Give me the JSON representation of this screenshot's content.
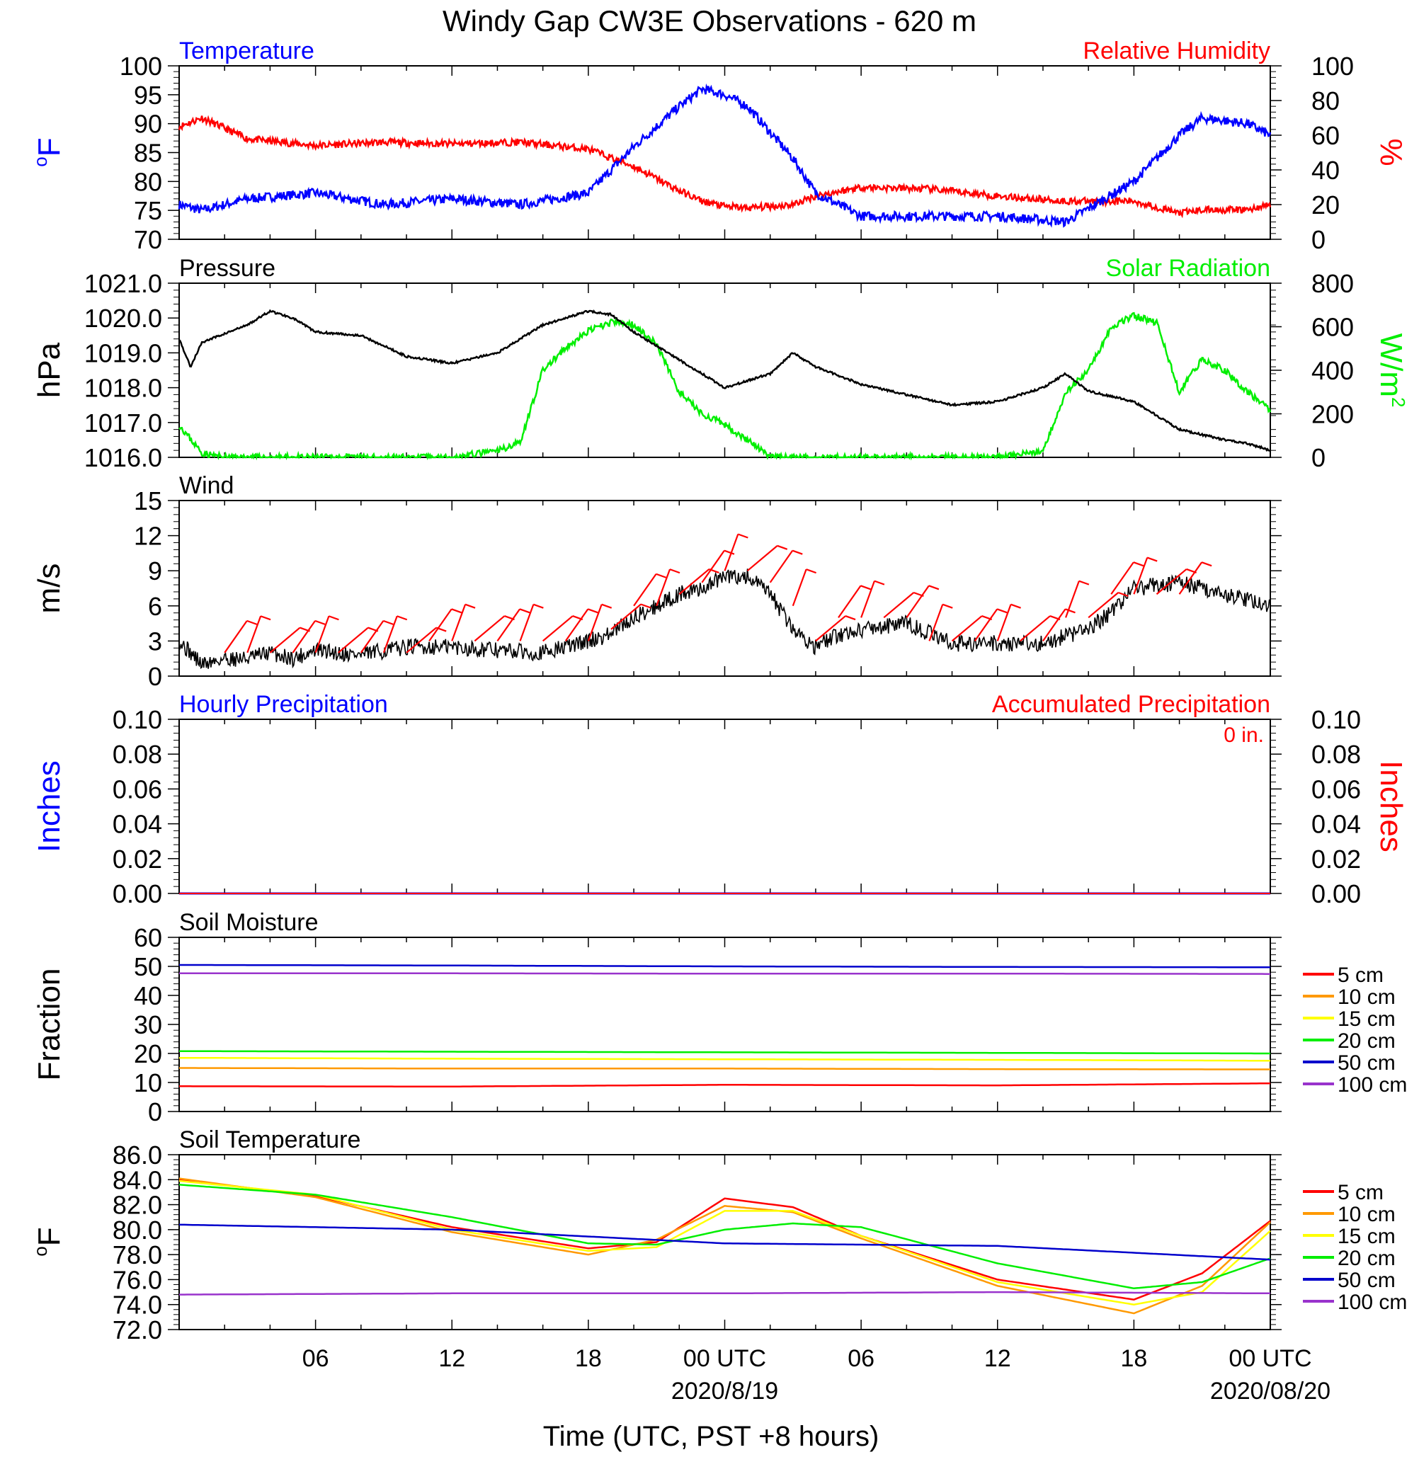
{
  "title": "Windy Gap CW3E Observations - 620 m",
  "xlabel": "Time (UTC, PST +8 hours)",
  "x_ticks": [
    "06",
    "12",
    "18",
    "00 UTC",
    "06",
    "12",
    "18",
    "00 UTC"
  ],
  "x_dates": [
    "2020/8/19",
    "2020/08/20"
  ],
  "colors": {
    "temperature": "#0000ff",
    "humidity": "#ff0000",
    "pressure": "#000000",
    "solar": "#00ee00",
    "wind": "#000000",
    "barb": "#ff0000",
    "s5": "#ff0000",
    "s10": "#ff9900",
    "s15": "#ffff00",
    "s20": "#00ee00",
    "s50": "#0000cc",
    "s100": "#9933cc"
  },
  "chart_data": [
    {
      "type": "line",
      "title_left": "Temperature",
      "title_right": "Relative Humidity",
      "ylabel_left": "oF",
      "ylabel_right": "%",
      "y_left_ticks": [
        "100",
        "95",
        "90",
        "85",
        "80",
        "75",
        "70"
      ],
      "y_right_ticks": [
        "100",
        "80",
        "60",
        "40",
        "20",
        "0"
      ],
      "ylim_left": [
        70,
        100
      ],
      "ylim_right": [
        0,
        100
      ],
      "x_hours": [
        0,
        1,
        3,
        6,
        9,
        12,
        15,
        18,
        20,
        22,
        23,
        24,
        25,
        27,
        28,
        30,
        33,
        36,
        39,
        42,
        44,
        45,
        47,
        48
      ],
      "series": [
        {
          "name": "Temperature",
          "axis": "left",
          "values": [
            76,
            75,
            77,
            78,
            76,
            77,
            76,
            78,
            86,
            93,
            96,
            95,
            93,
            84,
            78,
            74,
            74,
            74,
            73,
            80,
            88,
            91,
            90,
            88
          ]
        },
        {
          "name": "Relative Humidity",
          "axis": "right",
          "values": [
            65,
            70,
            58,
            54,
            56,
            55,
            56,
            52,
            42,
            28,
            22,
            19,
            18,
            20,
            25,
            30,
            29,
            25,
            22,
            22,
            15,
            17,
            17,
            20
          ]
        }
      ]
    },
    {
      "type": "line",
      "title_left": "Pressure",
      "title_right": "Solar Radiation",
      "ylabel_left": "hPa",
      "ylabel_right": "W/m",
      "ylabel_right_sup": "2",
      "y_left_ticks": [
        "1021.0",
        "1020.0",
        "1019.0",
        "1018.0",
        "1017.0",
        "1016.0"
      ],
      "y_right_ticks": [
        "800",
        "600",
        "400",
        "200",
        "0"
      ],
      "ylim_left": [
        1016,
        1021
      ],
      "ylim_right": [
        0,
        800
      ],
      "series": [
        {
          "name": "Pressure",
          "axis": "left",
          "x": [
            0,
            0.5,
            1,
            3,
            4,
            5,
            6,
            8,
            9,
            10,
            12,
            14,
            16,
            18,
            19,
            20,
            22,
            24,
            26,
            27,
            28,
            30,
            32,
            34,
            36,
            38,
            39,
            40,
            42,
            44,
            46,
            47,
            48
          ],
          "values": [
            1019.4,
            1018.6,
            1019.3,
            1019.8,
            1020.2,
            1020.0,
            1019.6,
            1019.5,
            1019.2,
            1018.9,
            1018.7,
            1019.0,
            1019.8,
            1020.2,
            1020.1,
            1019.6,
            1018.8,
            1018.0,
            1018.4,
            1019.0,
            1018.6,
            1018.1,
            1017.8,
            1017.5,
            1017.6,
            1018.0,
            1018.4,
            1017.9,
            1017.6,
            1016.8,
            1016.5,
            1016.4,
            1016.2
          ]
        },
        {
          "name": "Solar Radiation",
          "axis": "right",
          "x": [
            0,
            0.3,
            1,
            2,
            12,
            14,
            15,
            16,
            17,
            18,
            19,
            20,
            21,
            22,
            23,
            24,
            25,
            26,
            27,
            28,
            36,
            38,
            39,
            40,
            41,
            42,
            43,
            44,
            45,
            46,
            47,
            48
          ],
          "values": [
            150,
            110,
            20,
            0,
            0,
            30,
            70,
            400,
            500,
            580,
            620,
            610,
            520,
            300,
            200,
            150,
            80,
            0,
            0,
            0,
            0,
            30,
            300,
            400,
            600,
            650,
            620,
            300,
            450,
            400,
            300,
            220
          ]
        }
      ]
    },
    {
      "type": "line",
      "title_left": "Wind",
      "ylabel_left": "m/s",
      "y_left_ticks": [
        "15",
        "12",
        "9",
        "6",
        "3",
        "0"
      ],
      "ylim_left": [
        0,
        15
      ],
      "series": [
        {
          "name": "Wind speed",
          "x": [
            0,
            0.5,
            1,
            2,
            3,
            4,
            5,
            6,
            8,
            10,
            12,
            14,
            16,
            18,
            19,
            20,
            21,
            22,
            23,
            24,
            25,
            26,
            27,
            28,
            29,
            30,
            32,
            34,
            36,
            38,
            40,
            41,
            42,
            44,
            46,
            47,
            48
          ],
          "values": [
            3,
            2,
            1,
            1.5,
            1.5,
            2,
            1.5,
            2.2,
            1.8,
            2.5,
            2.5,
            2.2,
            2.0,
            3.0,
            3.6,
            5,
            6,
            7,
            7.5,
            8.5,
            8.5,
            7,
            4,
            2.5,
            3.5,
            4,
            4.5,
            2.8,
            2.8,
            2.8,
            4,
            5.5,
            7.5,
            8,
            7,
            6.5,
            6.0
          ]
        }
      ],
      "barbs": {
        "x": [
          2,
          3,
          4,
          5,
          6,
          7,
          8,
          9,
          10,
          11,
          12,
          13,
          14,
          15,
          16,
          17,
          18,
          19,
          20,
          21,
          22,
          23,
          24,
          25,
          26,
          27,
          28,
          29,
          30,
          31,
          32,
          33,
          34,
          35,
          36,
          37,
          38,
          39,
          40,
          41,
          42,
          43,
          44
        ],
        "speeds": [
          2,
          2,
          2,
          2,
          2,
          2,
          2,
          2,
          2,
          3,
          3,
          3,
          3,
          3,
          3,
          3,
          3,
          4,
          6,
          6,
          7,
          8,
          9,
          9,
          8,
          6,
          3,
          5,
          5,
          5,
          5,
          3,
          3,
          3,
          3,
          3,
          3,
          5,
          5,
          7,
          7,
          7,
          7
        ]
      }
    },
    {
      "type": "line",
      "title_left": "Hourly Precipitation",
      "title_right": "Accumulated Precipitation",
      "annotation": "0 in.",
      "ylabel_left": "Inches",
      "ylabel_right": "Inches",
      "y_left_ticks": [
        "0.10",
        "0.08",
        "0.06",
        "0.04",
        "0.02",
        "0.00"
      ],
      "y_right_ticks": [
        "0.10",
        "0.08",
        "0.06",
        "0.04",
        "0.02",
        "0.00"
      ],
      "ylim_left": [
        0,
        0.1
      ],
      "series": [
        {
          "name": "Hourly Precipitation",
          "x": [
            0,
            48
          ],
          "values": [
            0,
            0
          ]
        },
        {
          "name": "Accumulated Precipitation",
          "x": [
            0,
            48
          ],
          "values": [
            0,
            0
          ]
        }
      ]
    },
    {
      "type": "line",
      "title_left": "Soil Moisture",
      "ylabel_left": "Fraction",
      "y_left_ticks": [
        "60",
        "50",
        "40",
        "30",
        "20",
        "10",
        "0"
      ],
      "ylim_left": [
        0,
        60
      ],
      "legend": [
        "5 cm",
        "10 cm",
        "15 cm",
        "20 cm",
        "50 cm",
        "100 cm"
      ],
      "series": [
        {
          "name": "5 cm",
          "x": [
            0,
            12,
            24,
            36,
            48
          ],
          "values": [
            8.7,
            8.6,
            9.2,
            9.0,
            9.7
          ]
        },
        {
          "name": "10 cm",
          "x": [
            0,
            12,
            24,
            36,
            48
          ],
          "values": [
            15.0,
            14.8,
            14.8,
            14.6,
            14.5
          ]
        },
        {
          "name": "15 cm",
          "x": [
            0,
            12,
            24,
            36,
            48
          ],
          "values": [
            18.5,
            18.2,
            18.0,
            17.8,
            17.5
          ]
        },
        {
          "name": "20 cm",
          "x": [
            0,
            12,
            24,
            36,
            48
          ],
          "values": [
            20.8,
            20.6,
            20.4,
            20.2,
            20.0
          ]
        },
        {
          "name": "50 cm",
          "x": [
            0,
            12,
            24,
            36,
            48
          ],
          "values": [
            50.5,
            50.3,
            50.0,
            49.8,
            49.7
          ]
        },
        {
          "name": "100 cm",
          "x": [
            0,
            12,
            24,
            36,
            48
          ],
          "values": [
            47.6,
            47.6,
            47.5,
            47.5,
            47.4
          ]
        }
      ]
    },
    {
      "type": "line",
      "title_left": "Soil Temperature",
      "ylabel_left": "oF",
      "y_left_ticks": [
        "86.0",
        "84.0",
        "82.0",
        "80.0",
        "78.0",
        "76.0",
        "74.0",
        "72.0"
      ],
      "ylim_left": [
        72,
        86
      ],
      "legend": [
        "5 cm",
        "10 cm",
        "15 cm",
        "20 cm",
        "50 cm",
        "100 cm"
      ],
      "series": [
        {
          "name": "5 cm",
          "x": [
            0,
            6,
            12,
            18,
            21,
            24,
            27,
            30,
            36,
            42,
            45,
            48
          ],
          "values": [
            84.0,
            82.7,
            80.2,
            78.5,
            79.0,
            82.5,
            81.8,
            79.5,
            76.0,
            74.4,
            76.5,
            80.7
          ]
        },
        {
          "name": "10 cm",
          "x": [
            0,
            6,
            12,
            18,
            21,
            24,
            27,
            30,
            36,
            42,
            45,
            48
          ],
          "values": [
            84.1,
            82.6,
            79.8,
            78.0,
            79.2,
            81.9,
            81.4,
            79.3,
            75.5,
            73.3,
            75.5,
            80.6
          ]
        },
        {
          "name": "15 cm",
          "x": [
            0,
            6,
            12,
            18,
            21,
            24,
            27,
            30,
            36,
            42,
            45,
            48
          ],
          "values": [
            83.9,
            82.8,
            80.0,
            78.3,
            78.6,
            81.5,
            81.5,
            79.5,
            75.8,
            74.0,
            75.0,
            79.9
          ]
        },
        {
          "name": "20 cm",
          "x": [
            0,
            6,
            12,
            18,
            21,
            24,
            27,
            30,
            36,
            42,
            45,
            48
          ],
          "values": [
            83.6,
            82.8,
            81.0,
            78.9,
            78.8,
            80.0,
            80.5,
            80.2,
            77.3,
            75.3,
            75.8,
            77.7
          ]
        },
        {
          "name": "50 cm",
          "x": [
            0,
            12,
            24,
            36,
            48
          ],
          "values": [
            80.4,
            80.0,
            78.9,
            78.7,
            77.6
          ]
        },
        {
          "name": "100 cm",
          "x": [
            0,
            12,
            24,
            36,
            48
          ],
          "values": [
            74.8,
            74.9,
            74.9,
            75.0,
            74.9
          ]
        }
      ]
    }
  ]
}
